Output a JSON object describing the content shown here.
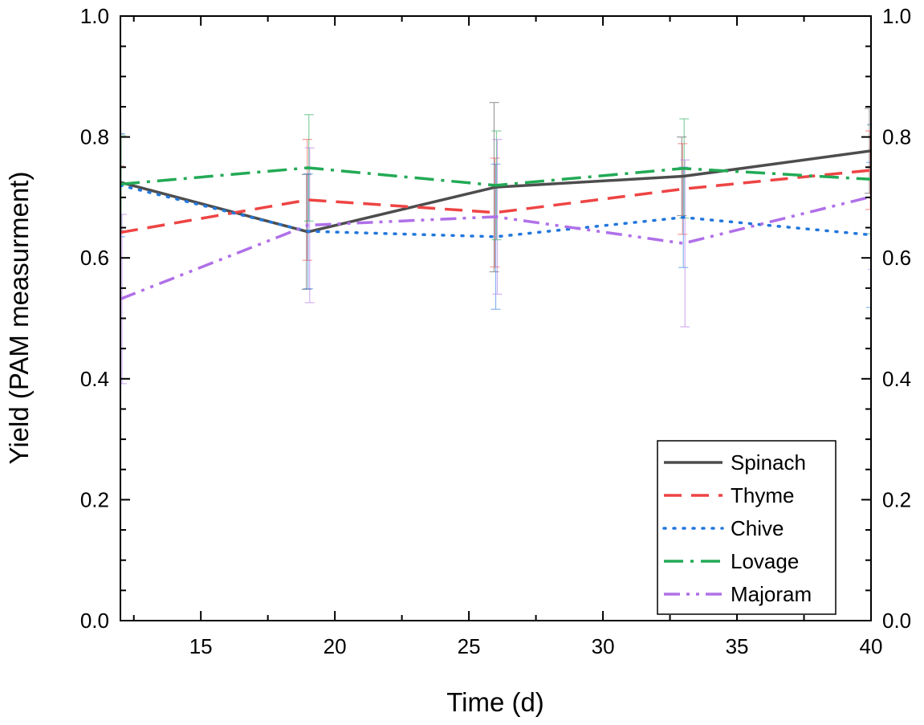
{
  "chart_data": {
    "type": "line",
    "title": "",
    "xlabel": "Time (d)",
    "ylabel": "Yield (PAM measurment)",
    "xlim": [
      12,
      40
    ],
    "ylim": [
      0.0,
      1.0
    ],
    "x_ticks": [
      15,
      20,
      25,
      30,
      35,
      40
    ],
    "x_tick_labels": [
      "15",
      "20",
      "25",
      "30",
      "35",
      "40"
    ],
    "y_ticks": [
      0.0,
      0.2,
      0.4,
      0.6,
      0.8,
      1.0
    ],
    "y_tick_labels": [
      "0.0",
      "0.2",
      "0.4",
      "0.6",
      "0.8",
      "1.0"
    ],
    "right_axis_mirrored": true,
    "legend_position": "bottom-right",
    "x": [
      12,
      19,
      26,
      33,
      40
    ],
    "series": [
      {
        "name": "Spinach",
        "color": "#4d4d4d",
        "dash": "solid",
        "values": [
          0.725,
          0.643,
          0.717,
          0.735,
          0.777
        ],
        "errors": [
          0.08,
          0.095,
          0.14,
          0.065,
          0.07
        ]
      },
      {
        "name": "Thyme",
        "color": "#ee4444",
        "dash": "dash",
        "values": [
          0.642,
          0.696,
          0.675,
          0.714,
          0.745
        ],
        "errors": [
          0.11,
          0.1,
          0.09,
          0.075,
          0.065
        ]
      },
      {
        "name": "Chive",
        "color": "#2277dd",
        "dash": "dot",
        "values": [
          0.72,
          0.644,
          0.635,
          0.667,
          0.638
        ],
        "errors": [
          0.085,
          0.095,
          0.12,
          0.083,
          0.12
        ]
      },
      {
        "name": "Lovage",
        "color": "#22aa55",
        "dash": "dashdot",
        "values": [
          0.722,
          0.749,
          0.72,
          0.748,
          0.73
        ],
        "errors": [
          0.08,
          0.088,
          0.09,
          0.082,
          0.09
        ]
      },
      {
        "name": "Majoram",
        "color": "#b070e8",
        "dash": "dashdotdot",
        "values": [
          0.532,
          0.654,
          0.668,
          0.624,
          0.701
        ],
        "errors": [
          0.14,
          0.128,
          0.128,
          0.138,
          0.12
        ]
      }
    ]
  }
}
